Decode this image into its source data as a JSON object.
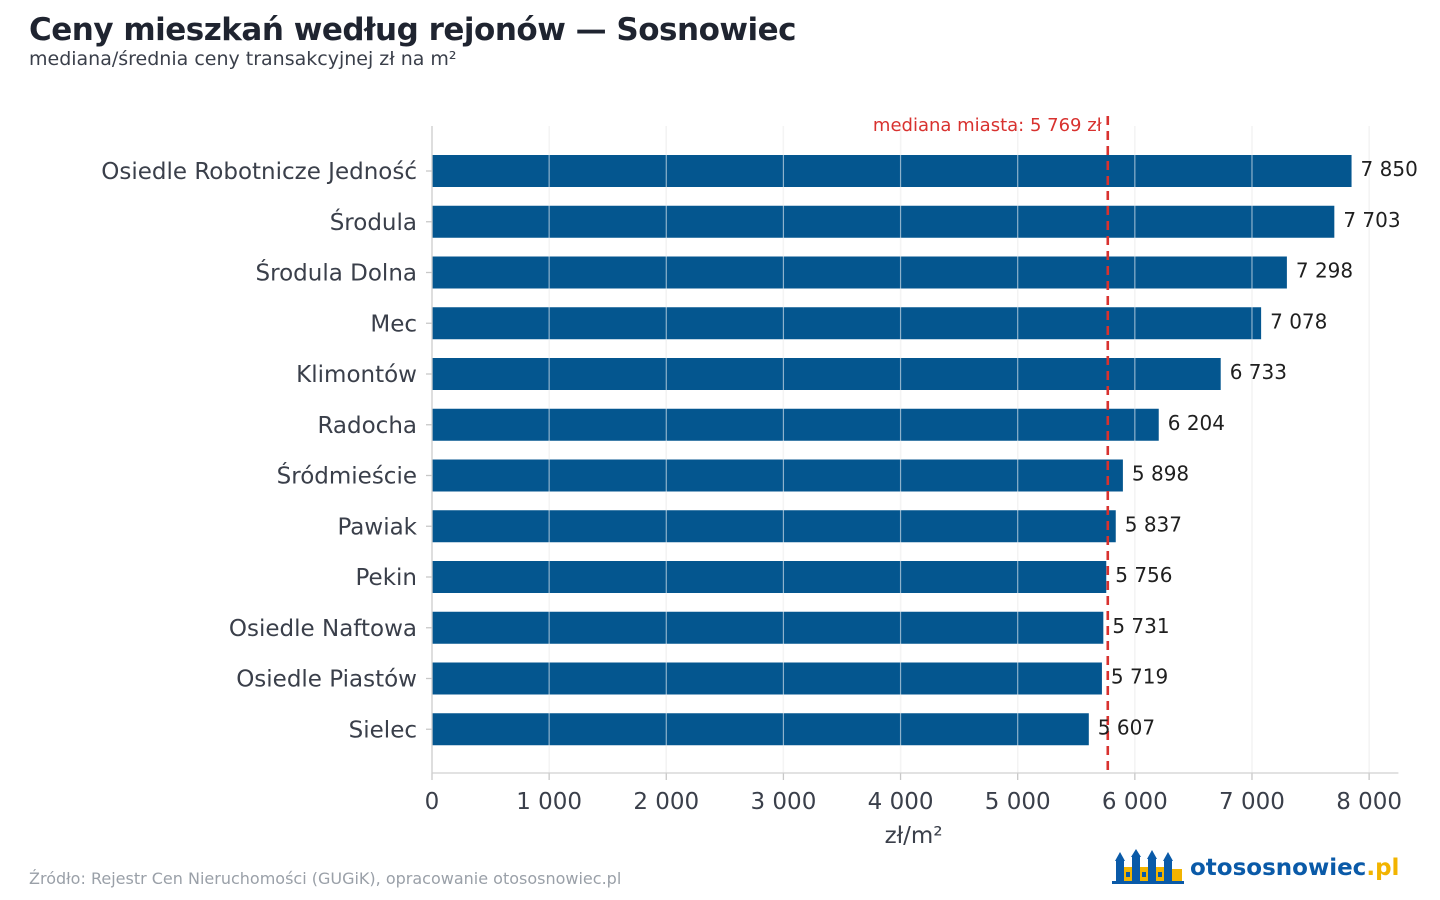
{
  "header": {
    "title": "Ceny mieszkań według rejonów — Sosnowiec",
    "subtitle": "mediana/średnia ceny transakcyjnej zł na m²"
  },
  "footer": {
    "source": "Źródło: Rejestr Cen Nieruchomości (GUGiK), opracowanie otososnowiec.pl",
    "brand_name": "otososnowiec",
    "brand_tld": ".pl"
  },
  "colors": {
    "bar": "#04568f",
    "median_line": "#d8322f",
    "grid": "#e6e6e6",
    "tick_text": "#3a3f4a"
  },
  "chart_data": {
    "type": "bar",
    "orientation": "horizontal",
    "categories": [
      "Osiedle Robotnicze Jedność",
      "Środula",
      "Środula Dolna",
      "Mec",
      "Klimontów",
      "Radocha",
      "Śródmieście",
      "Pawiak",
      "Pekin",
      "Osiedle Naftowa",
      "Osiedle Piastów",
      "Sielec"
    ],
    "values": [
      7850,
      7703,
      7298,
      7078,
      6733,
      6204,
      5898,
      5837,
      5756,
      5731,
      5719,
      5607
    ],
    "value_labels": [
      "7 850",
      "7 703",
      "7 298",
      "7 078",
      "6 733",
      "6 204",
      "5 898",
      "5 837",
      "5 756",
      "5 731",
      "5 719",
      "5 607"
    ],
    "xlabel": "zł/m²",
    "xlim": [
      0,
      8250
    ],
    "xticks": [
      0,
      1000,
      2000,
      3000,
      4000,
      5000,
      6000,
      7000,
      8000
    ],
    "xtick_labels": [
      "0",
      "1 000",
      "2 000",
      "3 000",
      "4 000",
      "5 000",
      "6 000",
      "7 000",
      "8 000"
    ],
    "reference_line": {
      "value": 5769,
      "label": "mediana miasta: 5 769 zł"
    },
    "grid": "vertical"
  }
}
